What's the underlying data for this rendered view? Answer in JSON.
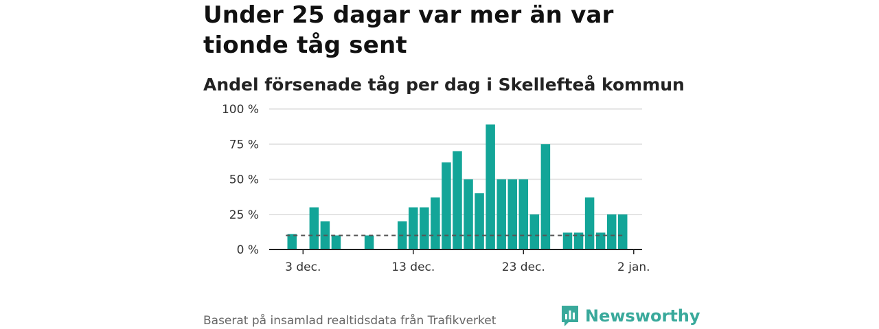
{
  "headline": "Under 25 dagar var mer än var tionde tåg sent",
  "subtitle": "Andel försenade tåg per dag i Skellefteå kommun",
  "source": "Baserat på insamlad realtidsdata från Trafikverket",
  "brand": {
    "name": "Newsworthy"
  },
  "colors": {
    "bar": "#13a598",
    "reference": "#555555",
    "grid": "#dddddd",
    "axis": "#222222",
    "brand": "#39a99b"
  },
  "chart_data": {
    "type": "bar",
    "title": "Andel försenade tåg per dag i Skellefteå kommun",
    "xlabel": "",
    "ylabel": "",
    "ylim": [
      0,
      100
    ],
    "y_ticks": [
      0,
      25,
      50,
      75,
      100
    ],
    "y_tick_labels": [
      "0 %",
      "25 %",
      "50 %",
      "75 %",
      "100 %"
    ],
    "x_range_day_index": [
      -1,
      33
    ],
    "x_ticks": [
      {
        "day_index": 2,
        "label": "3 dec."
      },
      {
        "day_index": 12,
        "label": "13 dec."
      },
      {
        "day_index": 22,
        "label": "23 dec."
      },
      {
        "day_index": 32,
        "label": "2 jan."
      }
    ],
    "reference_line": {
      "value": 10,
      "from_day_index": 0,
      "to_day_index": 31,
      "style": "dashed"
    },
    "series": [
      {
        "name": "Andel försenade tåg",
        "bars": [
          {
            "day_index": 1,
            "value": 11
          },
          {
            "day_index": 3,
            "value": 30
          },
          {
            "day_index": 4,
            "value": 20
          },
          {
            "day_index": 5,
            "value": 10
          },
          {
            "day_index": 8,
            "value": 10
          },
          {
            "day_index": 11,
            "value": 20
          },
          {
            "day_index": 12,
            "value": 30
          },
          {
            "day_index": 13,
            "value": 30
          },
          {
            "day_index": 14,
            "value": 37
          },
          {
            "day_index": 15,
            "value": 62
          },
          {
            "day_index": 16,
            "value": 70
          },
          {
            "day_index": 17,
            "value": 50
          },
          {
            "day_index": 18,
            "value": 40
          },
          {
            "day_index": 19,
            "value": 89
          },
          {
            "day_index": 20,
            "value": 50
          },
          {
            "day_index": 21,
            "value": 50
          },
          {
            "day_index": 22,
            "value": 50
          },
          {
            "day_index": 23,
            "value": 25
          },
          {
            "day_index": 24,
            "value": 75
          },
          {
            "day_index": 26,
            "value": 12
          },
          {
            "day_index": 27,
            "value": 12
          },
          {
            "day_index": 28,
            "value": 37
          },
          {
            "day_index": 29,
            "value": 12
          },
          {
            "day_index": 30,
            "value": 25
          },
          {
            "day_index": 31,
            "value": 25
          }
        ]
      }
    ]
  }
}
